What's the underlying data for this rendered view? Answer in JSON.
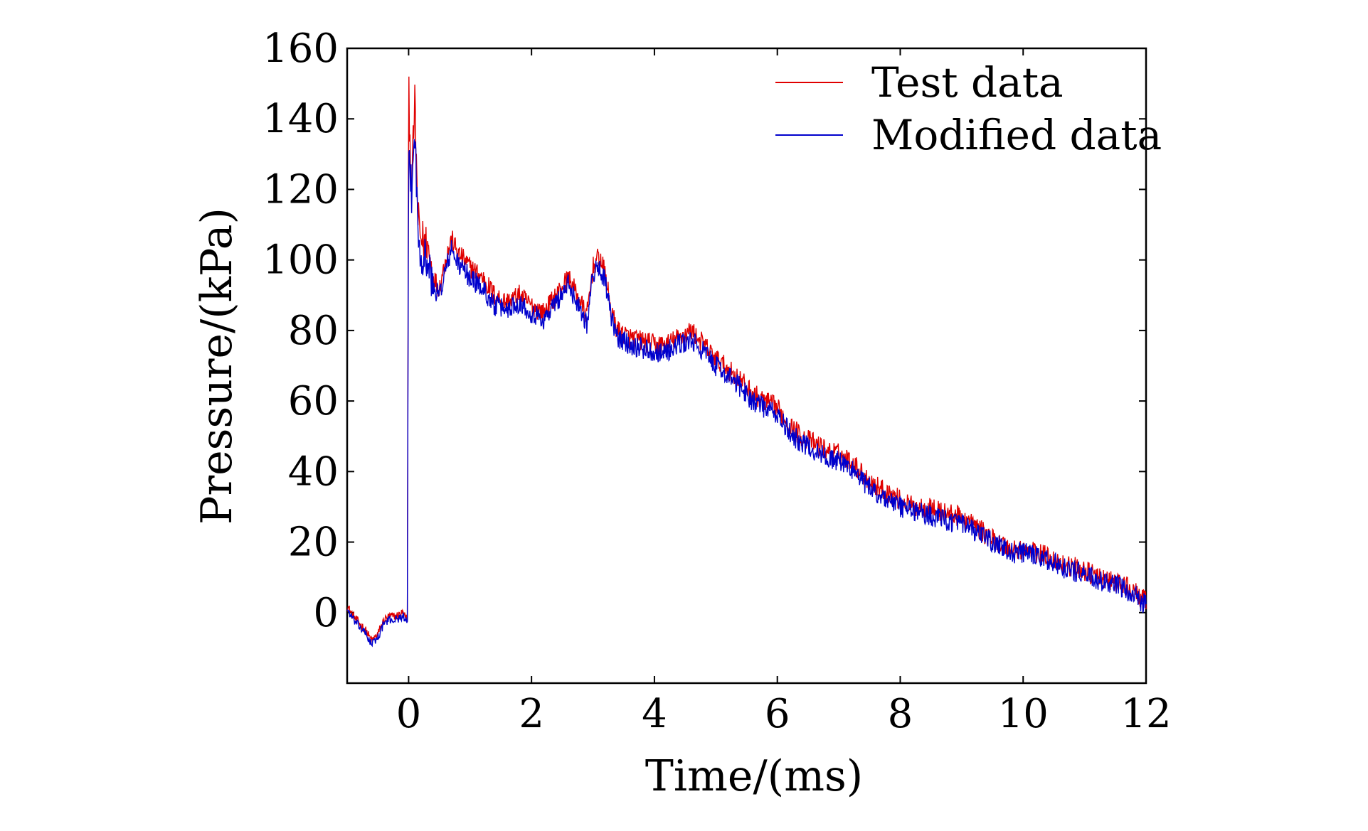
{
  "chart_data": {
    "type": "line",
    "title": "",
    "xlabel": "Time/(ms)",
    "ylabel": "Pressure/(kPa)",
    "xlim": [
      -1,
      12
    ],
    "ylim": [
      -20,
      160
    ],
    "xticks": [
      0,
      2,
      4,
      6,
      8,
      10,
      12
    ],
    "yticks": [
      0,
      20,
      40,
      60,
      80,
      100,
      120,
      140,
      160
    ],
    "grid": false,
    "legend_position": "top-right",
    "series": [
      {
        "name": "Test data",
        "color": "#e00000",
        "x": [
          -1.0,
          -0.9,
          -0.8,
          -0.7,
          -0.6,
          -0.5,
          -0.4,
          -0.3,
          -0.2,
          -0.1,
          -0.02,
          0.0,
          0.02,
          0.05,
          0.1,
          0.15,
          0.2,
          0.3,
          0.4,
          0.5,
          0.6,
          0.7,
          0.8,
          0.9,
          1.0,
          1.2,
          1.4,
          1.6,
          1.8,
          2.0,
          2.2,
          2.4,
          2.6,
          2.8,
          2.9,
          3.0,
          3.1,
          3.2,
          3.3,
          3.4,
          3.6,
          3.8,
          4.0,
          4.2,
          4.4,
          4.6,
          4.8,
          5.0,
          5.2,
          5.4,
          5.6,
          5.8,
          6.0,
          6.2,
          6.4,
          6.6,
          6.8,
          7.0,
          7.2,
          7.4,
          7.6,
          7.8,
          8.0,
          8.2,
          8.4,
          8.6,
          8.8,
          9.0,
          9.2,
          9.4,
          9.6,
          9.8,
          10.0,
          10.2,
          10.4,
          10.6,
          10.8,
          11.0,
          11.2,
          11.4,
          11.6,
          11.8,
          12.0
        ],
        "y": [
          2,
          -1,
          -3,
          -5,
          -8,
          -6,
          -2,
          -1,
          -1,
          0,
          -2,
          150,
          135,
          120,
          145,
          112,
          106,
          105,
          95,
          92,
          100,
          106,
          102,
          100,
          98,
          95,
          90,
          88,
          90,
          87,
          85,
          90,
          95,
          88,
          84,
          98,
          101,
          96,
          85,
          80,
          78,
          77,
          76,
          76,
          78,
          80,
          76,
          72,
          69,
          66,
          62,
          60,
          58,
          53,
          50,
          48,
          46,
          45,
          43,
          39,
          36,
          34,
          32,
          30,
          30,
          29,
          28,
          27,
          25,
          22,
          20,
          18,
          18,
          17,
          16,
          14,
          13,
          12,
          10,
          9,
          8,
          6,
          3
        ]
      },
      {
        "name": "Modified data",
        "color": "#0000cc",
        "x": [
          -1.0,
          -0.9,
          -0.8,
          -0.7,
          -0.6,
          -0.5,
          -0.4,
          -0.3,
          -0.2,
          -0.1,
          -0.02,
          0.0,
          0.02,
          0.05,
          0.1,
          0.15,
          0.2,
          0.3,
          0.4,
          0.5,
          0.6,
          0.7,
          0.8,
          0.9,
          1.0,
          1.2,
          1.4,
          1.6,
          1.8,
          2.0,
          2.2,
          2.4,
          2.6,
          2.8,
          2.9,
          3.0,
          3.1,
          3.2,
          3.3,
          3.4,
          3.6,
          3.8,
          4.0,
          4.2,
          4.4,
          4.6,
          4.8,
          5.0,
          5.2,
          5.4,
          5.6,
          5.8,
          6.0,
          6.2,
          6.4,
          6.6,
          6.8,
          7.0,
          7.2,
          7.4,
          7.6,
          7.8,
          8.0,
          8.2,
          8.4,
          8.6,
          8.8,
          9.0,
          9.2,
          9.4,
          9.6,
          9.8,
          10.0,
          10.2,
          10.4,
          10.6,
          10.8,
          11.0,
          11.2,
          11.4,
          11.6,
          11.8,
          12.0
        ],
        "y": [
          1,
          -2,
          -4,
          -6,
          -9,
          -7,
          -3,
          -2,
          -2,
          -1,
          -3,
          130,
          128,
          118,
          138,
          108,
          102,
          100,
          92,
          90,
          97,
          103,
          99,
          97,
          95,
          92,
          87,
          86,
          88,
          85,
          83,
          88,
          93,
          86,
          82,
          96,
          98,
          94,
          83,
          78,
          76,
          75,
          74,
          74,
          76,
          77,
          74,
          70,
          67,
          64,
          60,
          58,
          56,
          51,
          48,
          46,
          44,
          43,
          41,
          37,
          34,
          32,
          30,
          29,
          28,
          27,
          26,
          25,
          23,
          21,
          19,
          17,
          17,
          16,
          15,
          13,
          12,
          11,
          9,
          8,
          7,
          5,
          2
        ]
      }
    ]
  }
}
